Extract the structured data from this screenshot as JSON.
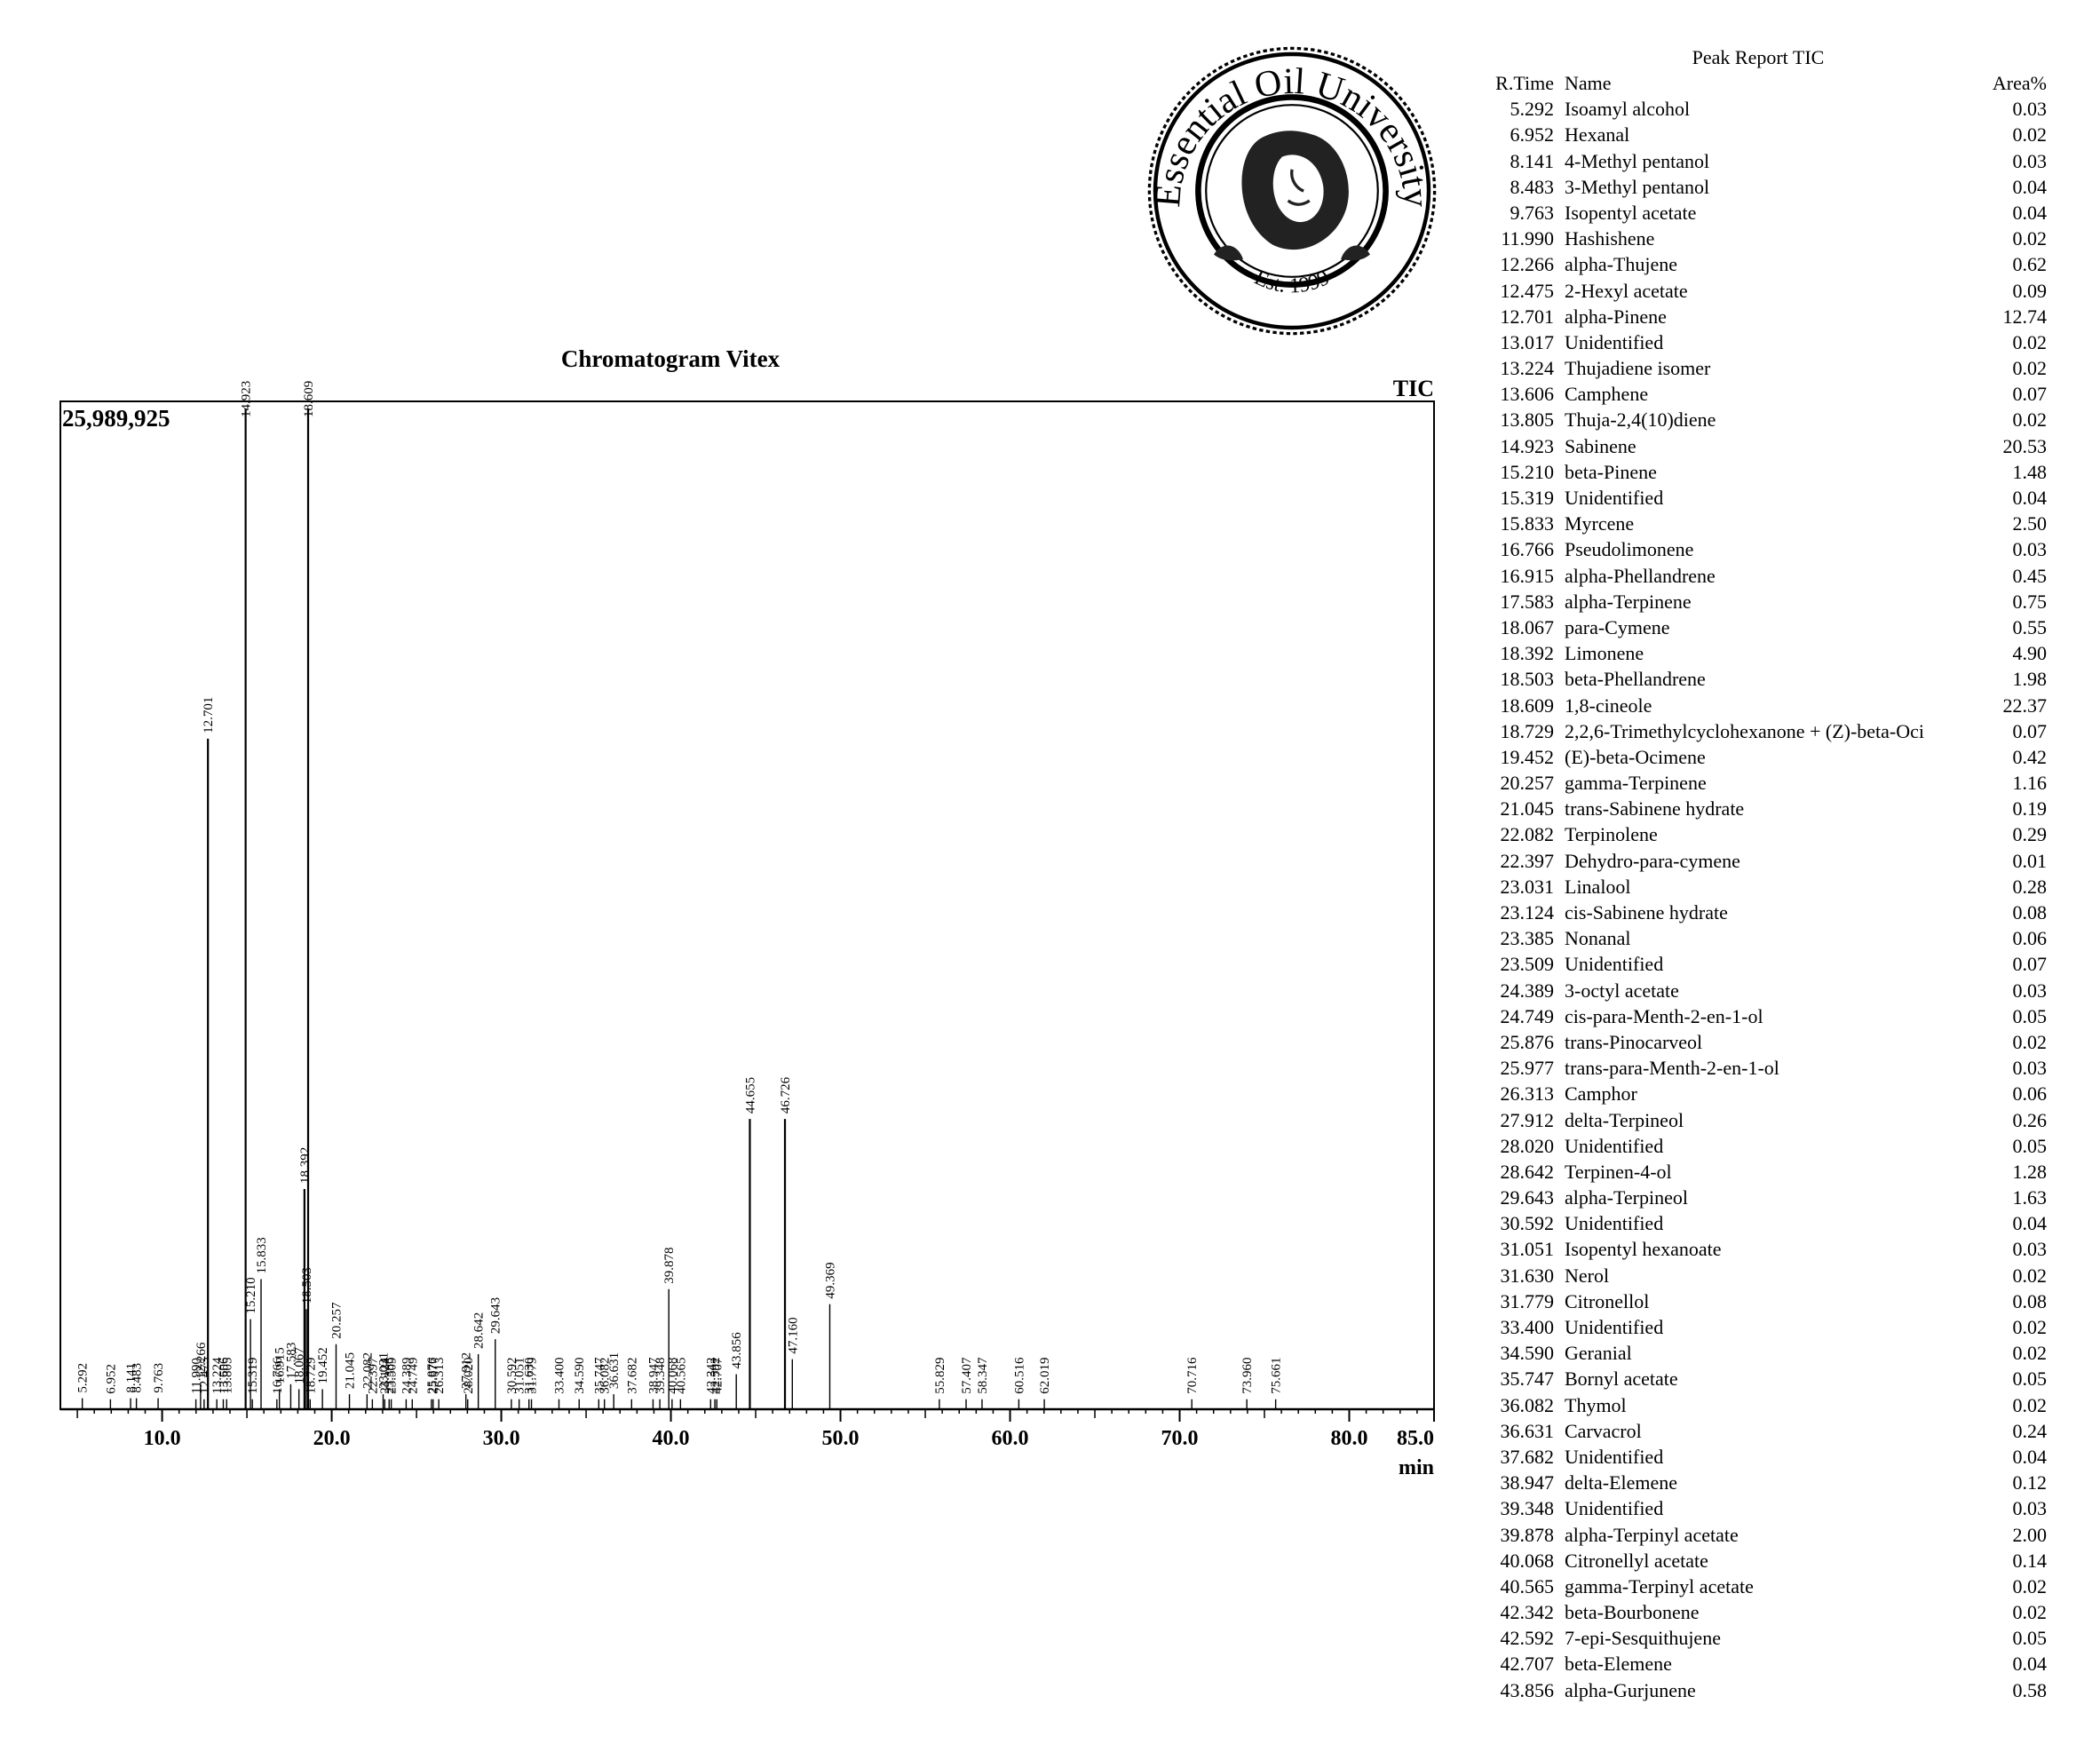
{
  "chart_data": {
    "type": "line",
    "title": "Chromatogram Vitex",
    "trace_label": "TIC",
    "y_max_label": "25,989,925",
    "xlabel": "min",
    "xlim": [
      4.0,
      85.0
    ],
    "ylim": [
      0,
      100
    ],
    "x_ticks": [
      "10.0",
      "20.0",
      "30.0",
      "40.0",
      "50.0",
      "60.0",
      "70.0",
      "80.0",
      "85.0"
    ],
    "peaks": [
      {
        "rt": 5.292,
        "h": 1.1,
        "label": "5.292"
      },
      {
        "rt": 6.952,
        "h": 1.0,
        "label": "6.952"
      },
      {
        "rt": 8.141,
        "h": 1.1,
        "label": "8.141"
      },
      {
        "rt": 8.483,
        "h": 1.1,
        "label": "8.483"
      },
      {
        "rt": 9.763,
        "h": 1.1,
        "label": "9.763"
      },
      {
        "rt": 11.99,
        "h": 1.0,
        "label": "11.990"
      },
      {
        "rt": 12.266,
        "h": 2.5,
        "label": "12.266"
      },
      {
        "rt": 12.475,
        "h": 1.0,
        "label": "12.475"
      },
      {
        "rt": 12.701,
        "h": 67.0,
        "label": "12.701"
      },
      {
        "rt": 13.224,
        "h": 1.0,
        "label": "13.224"
      },
      {
        "rt": 13.606,
        "h": 1.0,
        "label": "13.606"
      },
      {
        "rt": 13.805,
        "h": 1.0,
        "label": "13.805"
      },
      {
        "rt": 14.923,
        "h": 100.0,
        "label": "14.923"
      },
      {
        "rt": 15.21,
        "h": 9.0,
        "label": "15.210"
      },
      {
        "rt": 15.319,
        "h": 1.0,
        "label": "15.319"
      },
      {
        "rt": 15.833,
        "h": 13.0,
        "label": "15.833"
      },
      {
        "rt": 16.766,
        "h": 1.0,
        "label": "16.766"
      },
      {
        "rt": 16.915,
        "h": 2.0,
        "label": "16.915"
      },
      {
        "rt": 17.583,
        "h": 2.5,
        "label": "17.583"
      },
      {
        "rt": 18.067,
        "h": 2.0,
        "label": "18.067"
      },
      {
        "rt": 18.392,
        "h": 22.0,
        "label": "18.392"
      },
      {
        "rt": 18.503,
        "h": 10.0,
        "label": "18.503"
      },
      {
        "rt": 18.609,
        "h": 100.0,
        "label": "18.609"
      },
      {
        "rt": 18.729,
        "h": 1.0,
        "label": "18.729"
      },
      {
        "rt": 19.452,
        "h": 2.0,
        "label": "19.452"
      },
      {
        "rt": 20.257,
        "h": 6.5,
        "label": "20.257"
      },
      {
        "rt": 21.045,
        "h": 1.5,
        "label": "21.045"
      },
      {
        "rt": 22.082,
        "h": 1.5,
        "label": "22.082"
      },
      {
        "rt": 22.397,
        "h": 1.0,
        "label": "22.397"
      },
      {
        "rt": 23.031,
        "h": 1.5,
        "label": "23.031"
      },
      {
        "rt": 23.124,
        "h": 1.0,
        "label": "23.124"
      },
      {
        "rt": 23.385,
        "h": 1.0,
        "label": "23.385"
      },
      {
        "rt": 23.509,
        "h": 1.0,
        "label": "23.509"
      },
      {
        "rt": 24.389,
        "h": 1.0,
        "label": "24.389"
      },
      {
        "rt": 24.749,
        "h": 1.0,
        "label": "24.749"
      },
      {
        "rt": 25.876,
        "h": 1.0,
        "label": "25.876"
      },
      {
        "rt": 25.977,
        "h": 1.0,
        "label": "25.977"
      },
      {
        "rt": 26.313,
        "h": 1.0,
        "label": "26.313"
      },
      {
        "rt": 27.912,
        "h": 1.5,
        "label": "27.912"
      },
      {
        "rt": 28.02,
        "h": 1.0,
        "label": "28.020"
      },
      {
        "rt": 28.642,
        "h": 5.5,
        "label": "28.642"
      },
      {
        "rt": 29.643,
        "h": 7.0,
        "label": "29.643"
      },
      {
        "rt": 30.592,
        "h": 1.0,
        "label": "30.592"
      },
      {
        "rt": 31.051,
        "h": 1.0,
        "label": "31.051"
      },
      {
        "rt": 31.63,
        "h": 1.0,
        "label": "31.630"
      },
      {
        "rt": 31.779,
        "h": 1.0,
        "label": "31.779"
      },
      {
        "rt": 33.4,
        "h": 1.0,
        "label": "33.400"
      },
      {
        "rt": 34.59,
        "h": 1.0,
        "label": "34.590"
      },
      {
        "rt": 35.747,
        "h": 1.0,
        "label": "35.747"
      },
      {
        "rt": 36.082,
        "h": 1.0,
        "label": "36.082"
      },
      {
        "rt": 36.631,
        "h": 1.5,
        "label": "36.631"
      },
      {
        "rt": 37.682,
        "h": 1.0,
        "label": "37.682"
      },
      {
        "rt": 38.947,
        "h": 1.0,
        "label": "38.947"
      },
      {
        "rt": 39.348,
        "h": 1.0,
        "label": "39.348"
      },
      {
        "rt": 39.878,
        "h": 12.0,
        "label": "39.878"
      },
      {
        "rt": 40.068,
        "h": 1.0,
        "label": "40.068"
      },
      {
        "rt": 40.565,
        "h": 1.0,
        "label": "40.565"
      },
      {
        "rt": 42.342,
        "h": 1.0,
        "label": "42.342"
      },
      {
        "rt": 42.592,
        "h": 1.0,
        "label": "42.592"
      },
      {
        "rt": 42.707,
        "h": 1.0,
        "label": "42.707"
      },
      {
        "rt": 43.856,
        "h": 3.5,
        "label": "43.856"
      },
      {
        "rt": 44.655,
        "h": 29.0,
        "label": "44.655"
      },
      {
        "rt": 46.726,
        "h": 29.0,
        "label": "46.726"
      },
      {
        "rt": 47.16,
        "h": 5.0,
        "label": "47.160"
      },
      {
        "rt": 49.369,
        "h": 10.5,
        "label": "49.369"
      },
      {
        "rt": 55.829,
        "h": 1.0,
        "label": "55.829"
      },
      {
        "rt": 57.407,
        "h": 1.0,
        "label": "57.407"
      },
      {
        "rt": 58.347,
        "h": 1.0,
        "label": "58.347"
      },
      {
        "rt": 60.516,
        "h": 1.0,
        "label": "60.516"
      },
      {
        "rt": 62.019,
        "h": 1.0,
        "label": "62.019"
      },
      {
        "rt": 70.716,
        "h": 1.0,
        "label": "70.716"
      },
      {
        "rt": 73.96,
        "h": 1.0,
        "label": "73.960"
      },
      {
        "rt": 75.661,
        "h": 1.0,
        "label": "75.661"
      }
    ]
  },
  "logo": {
    "text": "Essential Oil University",
    "est": "Est. 1999"
  },
  "report": {
    "title": "Peak Report TIC",
    "columns": [
      "R.Time",
      "Name",
      "Area%"
    ],
    "rows": [
      [
        "5.292",
        "Isoamyl alcohol",
        "0.03"
      ],
      [
        "6.952",
        "Hexanal",
        "0.02"
      ],
      [
        "8.141",
        "4-Methyl pentanol",
        "0.03"
      ],
      [
        "8.483",
        "3-Methyl pentanol",
        "0.04"
      ],
      [
        "9.763",
        "Isopentyl acetate",
        "0.04"
      ],
      [
        "11.990",
        "Hashishene",
        "0.02"
      ],
      [
        "12.266",
        "alpha-Thujene",
        "0.62"
      ],
      [
        "12.475",
        "2-Hexyl acetate",
        "0.09"
      ],
      [
        "12.701",
        "alpha-Pinene",
        "12.74"
      ],
      [
        "13.017",
        "Unidentified",
        "0.02"
      ],
      [
        "13.224",
        "Thujadiene isomer",
        "0.02"
      ],
      [
        "13.606",
        "Camphene",
        "0.07"
      ],
      [
        "13.805",
        "Thuja-2,4(10)diene",
        "0.02"
      ],
      [
        "14.923",
        "Sabinene",
        "20.53"
      ],
      [
        "15.210",
        "beta-Pinene",
        "1.48"
      ],
      [
        "15.319",
        "Unidentified",
        "0.04"
      ],
      [
        "15.833",
        "Myrcene",
        "2.50"
      ],
      [
        "16.766",
        "Pseudolimonene",
        "0.03"
      ],
      [
        "16.915",
        "alpha-Phellandrene",
        "0.45"
      ],
      [
        "17.583",
        "alpha-Terpinene",
        "0.75"
      ],
      [
        "18.067",
        "para-Cymene",
        "0.55"
      ],
      [
        "18.392",
        "Limonene",
        "4.90"
      ],
      [
        "18.503",
        "beta-Phellandrene",
        "1.98"
      ],
      [
        "18.609",
        "1,8-cineole",
        "22.37"
      ],
      [
        "18.729",
        "2,2,6-Trimethylcyclohexanone + (Z)-beta-Oci",
        "0.07"
      ],
      [
        "19.452",
        "(E)-beta-Ocimene",
        "0.42"
      ],
      [
        "20.257",
        "gamma-Terpinene",
        "1.16"
      ],
      [
        "21.045",
        "trans-Sabinene hydrate",
        "0.19"
      ],
      [
        "22.082",
        "Terpinolene",
        "0.29"
      ],
      [
        "22.397",
        "Dehydro-para-cymene",
        "0.01"
      ],
      [
        "23.031",
        "Linalool",
        "0.28"
      ],
      [
        "23.124",
        "cis-Sabinene hydrate",
        "0.08"
      ],
      [
        "23.385",
        "Nonanal",
        "0.06"
      ],
      [
        "23.509",
        "Unidentified",
        "0.07"
      ],
      [
        "24.389",
        "3-octyl acetate",
        "0.03"
      ],
      [
        "24.749",
        "cis-para-Menth-2-en-1-ol",
        "0.05"
      ],
      [
        "25.876",
        "trans-Pinocarveol",
        "0.02"
      ],
      [
        "25.977",
        "trans-para-Menth-2-en-1-ol",
        "0.03"
      ],
      [
        "26.313",
        "Camphor",
        "0.06"
      ],
      [
        "27.912",
        "delta-Terpineol",
        "0.26"
      ],
      [
        "28.020",
        "Unidentified",
        "0.05"
      ],
      [
        "28.642",
        "Terpinen-4-ol",
        "1.28"
      ],
      [
        "29.643",
        "alpha-Terpineol",
        "1.63"
      ],
      [
        "30.592",
        "Unidentified",
        "0.04"
      ],
      [
        "31.051",
        "Isopentyl hexanoate",
        "0.03"
      ],
      [
        "31.630",
        "Nerol",
        "0.02"
      ],
      [
        "31.779",
        "Citronellol",
        "0.08"
      ],
      [
        "33.400",
        "Unidentified",
        "0.02"
      ],
      [
        "34.590",
        "Geranial",
        "0.02"
      ],
      [
        "35.747",
        "Bornyl acetate",
        "0.05"
      ],
      [
        "36.082",
        "Thymol",
        "0.02"
      ],
      [
        "36.631",
        "Carvacrol",
        "0.24"
      ],
      [
        "37.682",
        "Unidentified",
        "0.04"
      ],
      [
        "38.947",
        "delta-Elemene",
        "0.12"
      ],
      [
        "39.348",
        "Unidentified",
        "0.03"
      ],
      [
        "39.878",
        "alpha-Terpinyl acetate",
        "2.00"
      ],
      [
        "40.068",
        "Citronellyl acetate",
        "0.14"
      ],
      [
        "40.565",
        "gamma-Terpinyl acetate",
        "0.02"
      ],
      [
        "42.342",
        "beta-Bourbonene",
        "0.02"
      ],
      [
        "42.592",
        "7-epi-Sesquithujene",
        "0.05"
      ],
      [
        "42.707",
        "beta-Elemene",
        "0.04"
      ],
      [
        "43.856",
        "alpha-Gurjunene",
        "0.58"
      ]
    ]
  }
}
